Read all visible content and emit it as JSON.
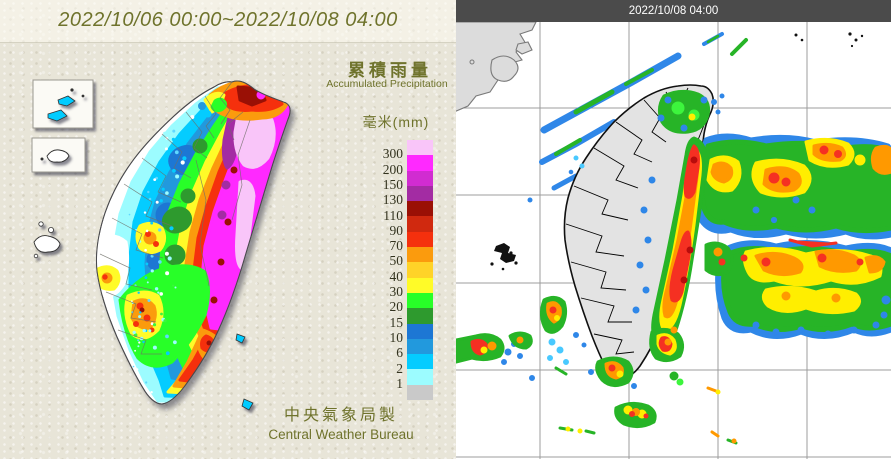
{
  "left_panel": {
    "title": "2022/10/06 00:00~2022/10/08 04:00",
    "legend": {
      "title_zh": "累積雨量",
      "title_en": "Accumulated Precipitation",
      "unit": "毫米(mm)",
      "scale": [
        {
          "value": "",
          "color": "#F9C5F9"
        },
        {
          "value": "300",
          "color": "#FF29FF"
        },
        {
          "value": "200",
          "color": "#D12CD1"
        },
        {
          "value": "150",
          "color": "#A32CA3"
        },
        {
          "value": "130",
          "color": "#9A1005"
        },
        {
          "value": "110",
          "color": "#D0290F"
        },
        {
          "value": "90",
          "color": "#F5300D"
        },
        {
          "value": "70",
          "color": "#FB9B0D"
        },
        {
          "value": "50",
          "color": "#FFD328"
        },
        {
          "value": "40",
          "color": "#FFFB28"
        },
        {
          "value": "30",
          "color": "#28FF28"
        },
        {
          "value": "20",
          "color": "#2E9A2E"
        },
        {
          "value": "15",
          "color": "#1D77D4"
        },
        {
          "value": "10",
          "color": "#2299DD"
        },
        {
          "value": "6",
          "color": "#04CCFF"
        },
        {
          "value": "2",
          "color": "#9CFCFF"
        },
        {
          "value": "1",
          "color": "#C9C9C9"
        }
      ]
    },
    "credit_zh": "中央氣象局製",
    "credit_en": "Central Weather Bureau",
    "text_color": "#6f732c",
    "background_color": "#e8e5d8"
  },
  "right_panel": {
    "timestamp": "2022/10/08 04:00",
    "header_bg": "#4b4b4b",
    "grid_color": "#9c9c9c",
    "land_color": "#e3e3e3"
  }
}
